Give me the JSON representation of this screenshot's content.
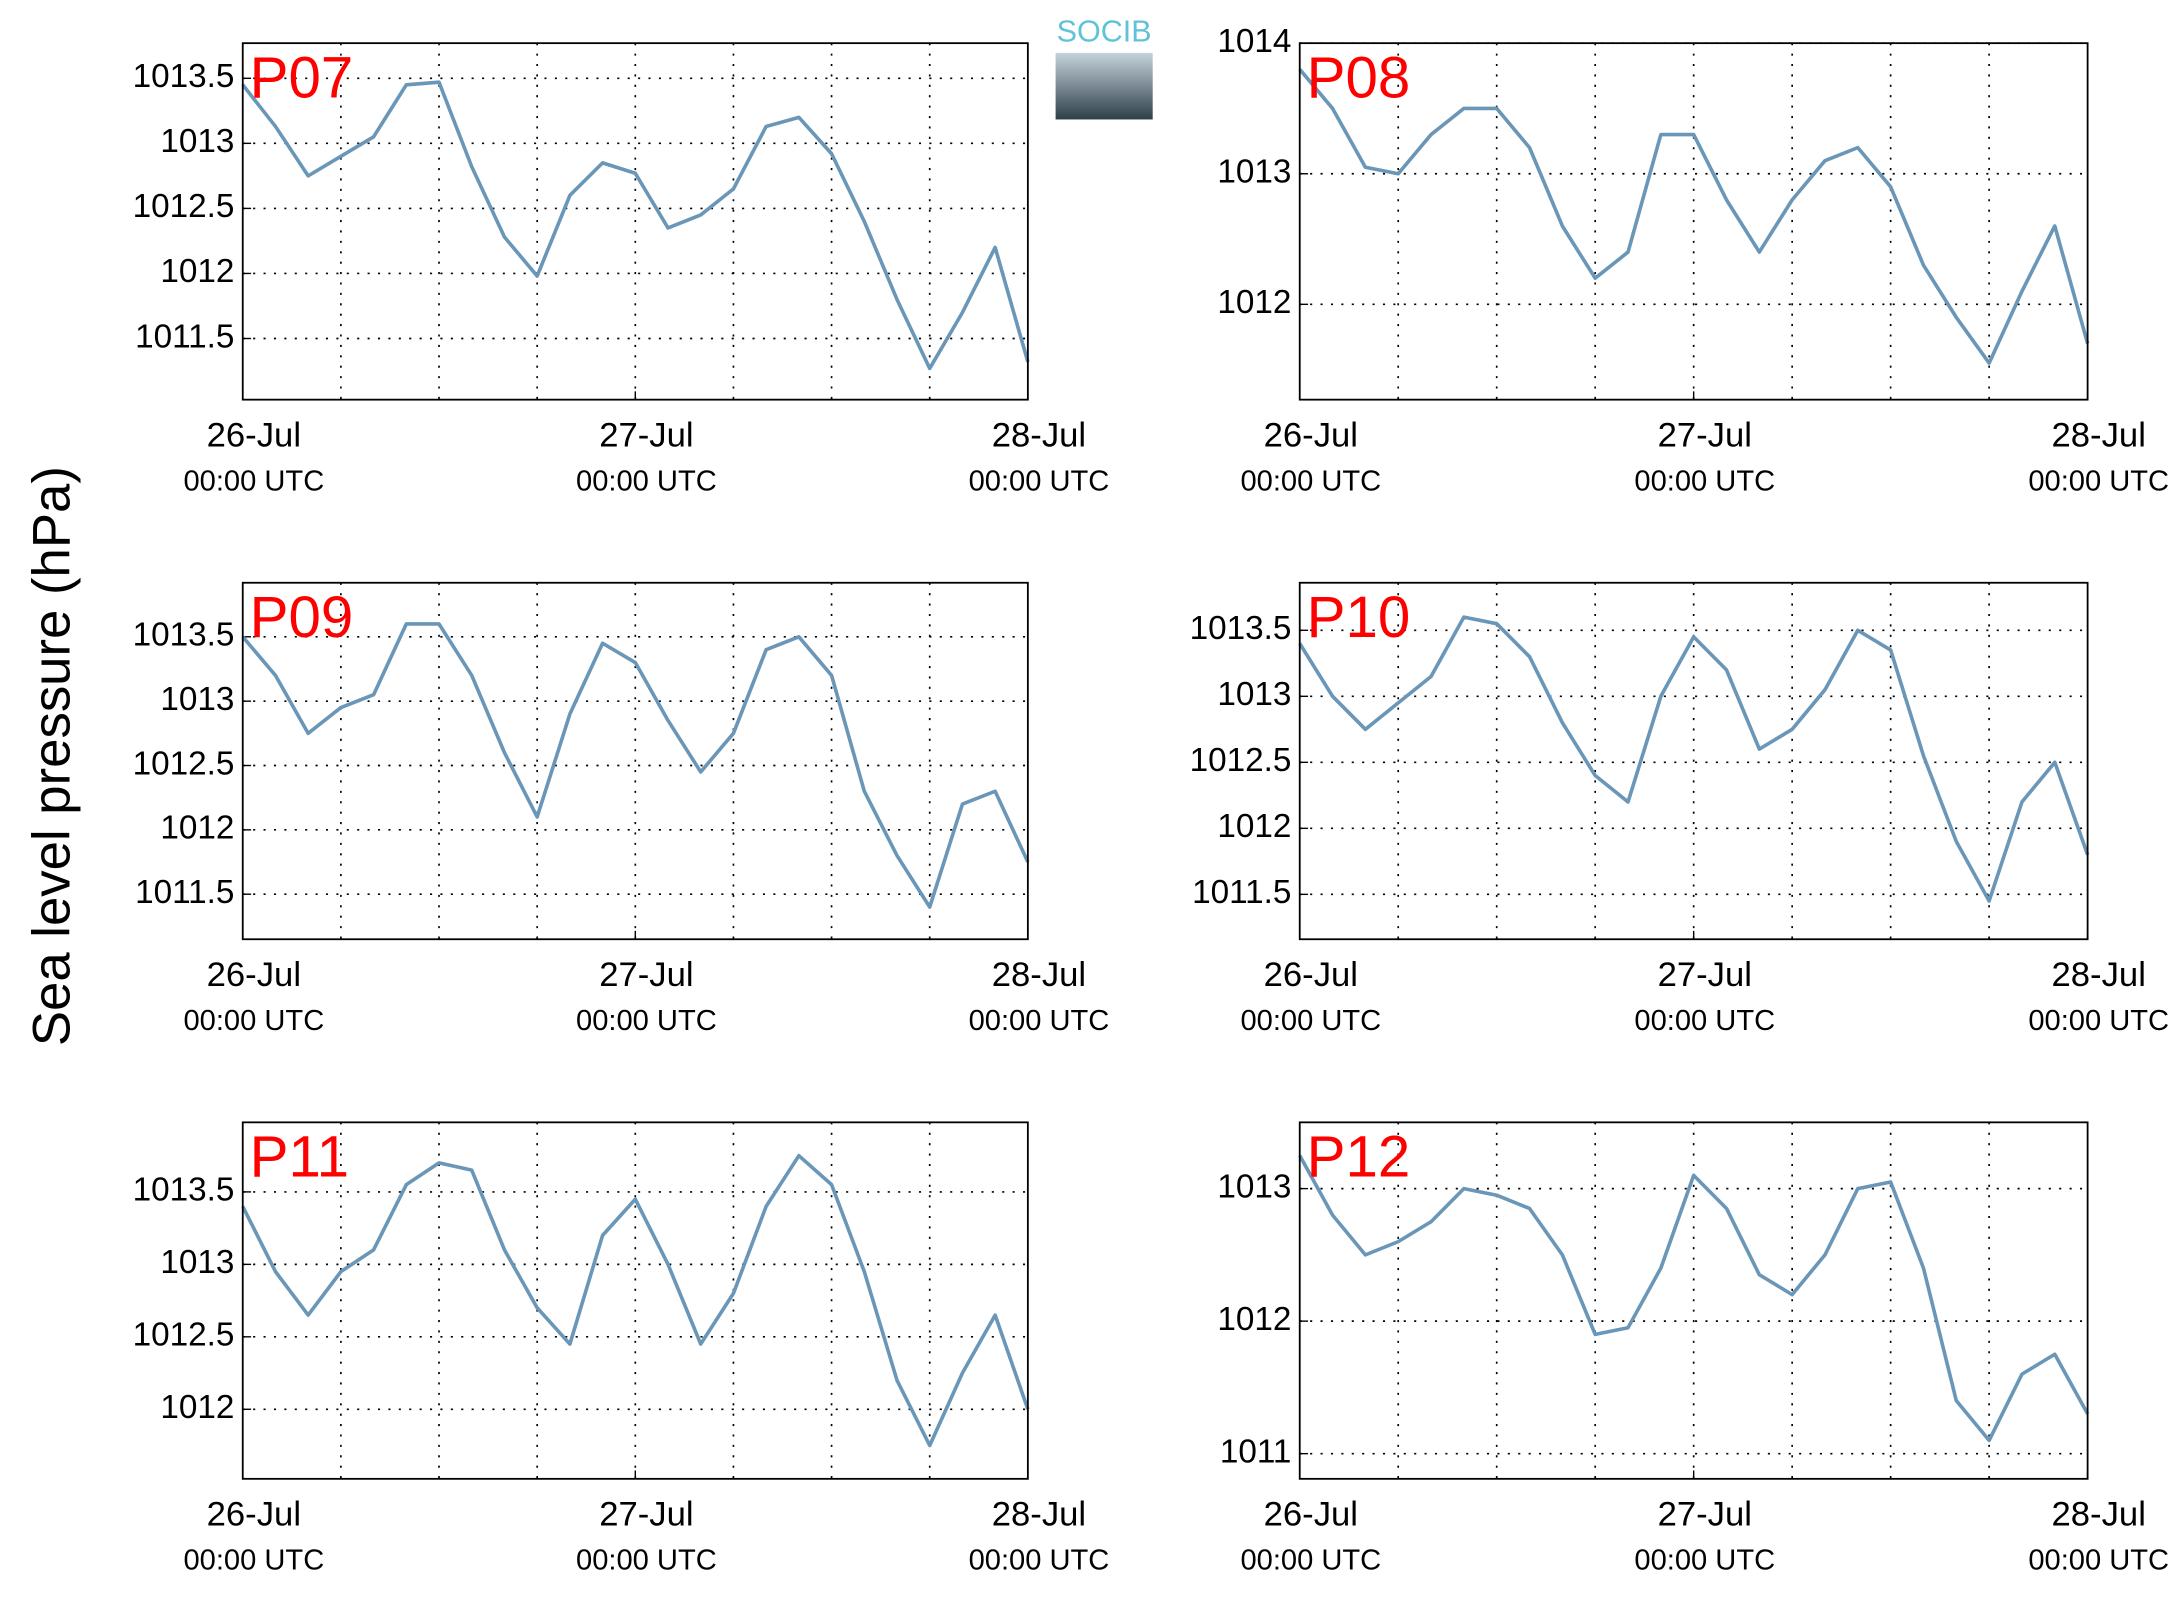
{
  "ylabel": "Sea level pressure (hPa)",
  "logo": "SOCIB",
  "chart_data": [
    {
      "type": "line",
      "title": "P07",
      "color": "#6a96b8",
      "grid": true,
      "x": [
        0,
        2,
        4,
        6,
        8,
        10,
        12,
        14,
        16,
        18,
        20,
        22,
        24,
        26,
        28,
        30,
        32,
        34,
        36,
        38,
        40,
        42,
        44,
        46,
        48
      ],
      "values": [
        1013.45,
        1013.13,
        1012.75,
        1012.9,
        1013.05,
        1013.45,
        1013.47,
        1012.82,
        1012.28,
        1011.98,
        1012.6,
        1012.85,
        1012.77,
        1012.35,
        1012.45,
        1012.65,
        1013.13,
        1013.2,
        1012.92,
        1012.4,
        1011.8,
        1011.27,
        1011.7,
        1012.2,
        1011.32
      ],
      "xlim": [
        0,
        48
      ],
      "xticks": [
        {
          "value": 0,
          "label": "26-Jul",
          "sublabel": "00:00 UTC"
        },
        {
          "value": 24,
          "label": "27-Jul",
          "sublabel": "00:00 UTC"
        },
        {
          "value": 48,
          "label": "28-Jul",
          "sublabel": "00:00 UTC"
        }
      ],
      "xgrid": [
        6,
        12,
        18,
        24,
        30,
        36,
        42
      ],
      "ylim": [
        1011.03,
        1013.77
      ],
      "yticks": [
        1011.5,
        1012,
        1012.5,
        1013,
        1013.5
      ]
    },
    {
      "type": "line",
      "title": "P08",
      "color": "#6a96b8",
      "grid": true,
      "x": [
        0,
        2,
        4,
        6,
        8,
        10,
        12,
        14,
        16,
        18,
        20,
        22,
        24,
        26,
        28,
        30,
        32,
        34,
        36,
        38,
        40,
        42,
        44,
        46,
        48
      ],
      "values": [
        1013.8,
        1013.5,
        1013.05,
        1013.0,
        1013.3,
        1013.5,
        1013.5,
        1013.2,
        1012.6,
        1012.2,
        1012.4,
        1013.3,
        1013.3,
        1012.8,
        1012.4,
        1012.8,
        1013.1,
        1013.2,
        1012.9,
        1012.3,
        1011.9,
        1011.55,
        1012.1,
        1012.6,
        1011.7
      ],
      "xlim": [
        0,
        48
      ],
      "xticks": [
        {
          "value": 0,
          "label": "26-Jul",
          "sublabel": "00:00 UTC"
        },
        {
          "value": 24,
          "label": "27-Jul",
          "sublabel": "00:00 UTC"
        },
        {
          "value": 48,
          "label": "28-Jul",
          "sublabel": "00:00 UTC"
        }
      ],
      "xgrid": [
        6,
        12,
        18,
        24,
        30,
        36,
        42
      ],
      "ylim": [
        1011.27,
        1014
      ],
      "yticks": [
        1012,
        1013,
        1014
      ]
    },
    {
      "type": "line",
      "title": "P09",
      "color": "#6a96b8",
      "grid": true,
      "x": [
        0,
        2,
        4,
        6,
        8,
        10,
        12,
        14,
        16,
        18,
        20,
        22,
        24,
        26,
        28,
        30,
        32,
        34,
        36,
        38,
        40,
        42,
        44,
        46,
        48
      ],
      "values": [
        1013.5,
        1013.2,
        1012.75,
        1012.95,
        1013.05,
        1013.6,
        1013.6,
        1013.2,
        1012.6,
        1012.1,
        1012.9,
        1013.45,
        1013.3,
        1012.85,
        1012.45,
        1012.75,
        1013.4,
        1013.5,
        1013.2,
        1012.3,
        1011.8,
        1011.4,
        1012.2,
        1012.3,
        1011.75
      ],
      "xlim": [
        0,
        48
      ],
      "xticks": [
        {
          "value": 0,
          "label": "26-Jul",
          "sublabel": "00:00 UTC"
        },
        {
          "value": 24,
          "label": "27-Jul",
          "sublabel": "00:00 UTC"
        },
        {
          "value": 48,
          "label": "28-Jul",
          "sublabel": "00:00 UTC"
        }
      ],
      "xgrid": [
        6,
        12,
        18,
        24,
        30,
        36,
        42
      ],
      "ylim": [
        1011.15,
        1013.92
      ],
      "yticks": [
        1011.5,
        1012,
        1012.5,
        1013,
        1013.5
      ]
    },
    {
      "type": "line",
      "title": "P10",
      "color": "#6a96b8",
      "grid": true,
      "x": [
        0,
        2,
        4,
        6,
        8,
        10,
        12,
        14,
        16,
        18,
        20,
        22,
        24,
        26,
        28,
        30,
        32,
        34,
        36,
        38,
        40,
        42,
        44,
        46,
        48
      ],
      "values": [
        1013.4,
        1013.0,
        1012.75,
        1012.95,
        1013.15,
        1013.6,
        1013.55,
        1013.3,
        1012.8,
        1012.4,
        1012.2,
        1013.0,
        1013.45,
        1013.2,
        1012.6,
        1012.75,
        1013.05,
        1013.5,
        1013.35,
        1012.55,
        1011.9,
        1011.45,
        1012.2,
        1012.5,
        1011.8
      ],
      "xlim": [
        0,
        48
      ],
      "xticks": [
        {
          "value": 0,
          "label": "26-Jul",
          "sublabel": "00:00 UTC"
        },
        {
          "value": 24,
          "label": "27-Jul",
          "sublabel": "00:00 UTC"
        },
        {
          "value": 48,
          "label": "28-Jul",
          "sublabel": "00:00 UTC"
        }
      ],
      "xgrid": [
        6,
        12,
        18,
        24,
        30,
        36,
        42
      ],
      "ylim": [
        1011.16,
        1013.86
      ],
      "yticks": [
        1011.5,
        1012,
        1012.5,
        1013,
        1013.5
      ]
    },
    {
      "type": "line",
      "title": "P11",
      "color": "#6a96b8",
      "grid": true,
      "x": [
        0,
        2,
        4,
        6,
        8,
        10,
        12,
        14,
        16,
        18,
        20,
        22,
        24,
        26,
        28,
        30,
        32,
        34,
        36,
        38,
        40,
        42,
        44,
        46,
        48
      ],
      "values": [
        1013.4,
        1012.95,
        1012.65,
        1012.95,
        1013.1,
        1013.55,
        1013.7,
        1013.65,
        1013.1,
        1012.7,
        1012.45,
        1013.2,
        1013.45,
        1013.0,
        1012.45,
        1012.8,
        1013.4,
        1013.75,
        1013.55,
        1012.95,
        1012.2,
        1011.75,
        1012.25,
        1012.65,
        1012.0
      ],
      "xlim": [
        0,
        48
      ],
      "xticks": [
        {
          "value": 0,
          "label": "26-Jul",
          "sublabel": "00:00 UTC"
        },
        {
          "value": 24,
          "label": "27-Jul",
          "sublabel": "00:00 UTC"
        },
        {
          "value": 48,
          "label": "28-Jul",
          "sublabel": "00:00 UTC"
        }
      ],
      "xgrid": [
        6,
        12,
        18,
        24,
        30,
        36,
        42
      ],
      "ylim": [
        1011.52,
        1013.98
      ],
      "yticks": [
        1012,
        1012.5,
        1013,
        1013.5
      ]
    },
    {
      "type": "line",
      "title": "P12",
      "color": "#6a96b8",
      "grid": true,
      "x": [
        0,
        2,
        4,
        6,
        8,
        10,
        12,
        14,
        16,
        18,
        20,
        22,
        24,
        26,
        28,
        30,
        32,
        34,
        36,
        38,
        40,
        42,
        44,
        46,
        48
      ],
      "values": [
        1013.25,
        1012.8,
        1012.5,
        1012.6,
        1012.75,
        1013.0,
        1012.95,
        1012.85,
        1012.5,
        1011.9,
        1011.95,
        1012.4,
        1013.1,
        1012.85,
        1012.35,
        1012.2,
        1012.5,
        1013.0,
        1013.05,
        1012.4,
        1011.4,
        1011.1,
        1011.6,
        1011.75,
        1011.3
      ],
      "xlim": [
        0,
        48
      ],
      "xticks": [
        {
          "value": 0,
          "label": "26-Jul",
          "sublabel": "00:00 UTC"
        },
        {
          "value": 24,
          "label": "27-Jul",
          "sublabel": "00:00 UTC"
        },
        {
          "value": 48,
          "label": "28-Jul",
          "sublabel": "00:00 UTC"
        }
      ],
      "xgrid": [
        6,
        12,
        18,
        24,
        30,
        36,
        42
      ],
      "ylim": [
        1010.81,
        1013.5
      ],
      "yticks": [
        1011,
        1012,
        1013
      ]
    }
  ]
}
